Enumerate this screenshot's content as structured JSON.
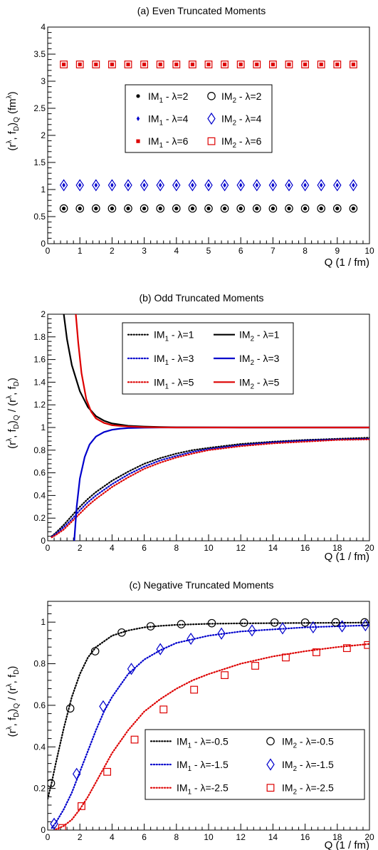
{
  "chart_data": [
    {
      "type": "scatter",
      "title": "(a)  Even Truncated Moments",
      "ylabel": "(r^λ, f_D)_Q   (fm^λ)",
      "xlabel": "Q   (1 / fm)",
      "xlim": [
        0,
        10
      ],
      "ylim": [
        0,
        4
      ],
      "xticks": [
        0,
        1,
        2,
        3,
        4,
        5,
        6,
        7,
        8,
        9,
        10
      ],
      "yticks": [
        0,
        0.5,
        1,
        1.5,
        2,
        2.5,
        3,
        3.5,
        4
      ],
      "grid": false,
      "legend_position": "center",
      "x": [
        0.5,
        1.0,
        1.5,
        2.0,
        2.5,
        3.0,
        3.5,
        4.0,
        4.5,
        5.0,
        5.5,
        6.0,
        6.5,
        7.0,
        7.5,
        8.0,
        8.5,
        9.0,
        9.5
      ],
      "series": [
        {
          "name": "IM1 - λ=2",
          "label_base": "IM",
          "label_sub": "1",
          "label_rest": " - λ=2",
          "marker": "dot",
          "color": "#000000",
          "value": 0.65
        },
        {
          "name": "IM2 - λ=2",
          "label_base": "IM",
          "label_sub": "2",
          "label_rest": " - λ=2",
          "marker": "open-circle",
          "color": "#000000",
          "value": 0.65
        },
        {
          "name": "IM1 - λ=4",
          "label_base": "IM",
          "label_sub": "1",
          "label_rest": " - λ=4",
          "marker": "small-diamond",
          "color": "#0000cc",
          "value": 1.08
        },
        {
          "name": "IM2 - λ=4",
          "label_base": "IM",
          "label_sub": "2",
          "label_rest": " - λ=4",
          "marker": "open-diamond",
          "color": "#0000cc",
          "value": 1.08
        },
        {
          "name": "IM1 - λ=6",
          "label_base": "IM",
          "label_sub": "1",
          "label_rest": " - λ=6",
          "marker": "filled-square",
          "color": "#dd0000",
          "value": 3.31
        },
        {
          "name": "IM2 - λ=6",
          "label_base": "IM",
          "label_sub": "2",
          "label_rest": " - λ=6",
          "marker": "open-square",
          "color": "#dd0000",
          "value": 3.31
        }
      ]
    },
    {
      "type": "line",
      "title": "(b)  Odd Truncated Moments",
      "ylabel": "(r^λ, f_D)_Q  /  (r^λ, f_D)",
      "xlabel": "Q   (1 / fm)",
      "xlim": [
        0,
        20
      ],
      "ylim": [
        0,
        2
      ],
      "xticks": [
        0,
        2,
        4,
        6,
        8,
        10,
        12,
        14,
        16,
        18,
        20
      ],
      "yticks": [
        0,
        0.2,
        0.4,
        0.6,
        0.8,
        1,
        1.2,
        1.4,
        1.6,
        1.8,
        2
      ],
      "grid": false,
      "legend_position": "top-right",
      "series": [
        {
          "name": "IM1 - λ=1",
          "label_base": "IM",
          "label_sub": "1",
          "label_rest": " - λ=1",
          "style": "dotted",
          "color": "#000000",
          "x": [
            0.25,
            0.5,
            1,
            1.5,
            2,
            2.5,
            3,
            4,
            5,
            6,
            7,
            8,
            9,
            10,
            12,
            14,
            16,
            18,
            20
          ],
          "y": [
            0.04,
            0.07,
            0.14,
            0.22,
            0.3,
            0.37,
            0.43,
            0.53,
            0.61,
            0.68,
            0.73,
            0.77,
            0.8,
            0.82,
            0.855,
            0.875,
            0.89,
            0.9,
            0.91
          ]
        },
        {
          "name": "IM1 - λ=3",
          "label_base": "IM",
          "label_sub": "1",
          "label_rest": " - λ=3",
          "style": "dotted",
          "color": "#0000cc",
          "x": [
            0.25,
            0.5,
            1,
            1.5,
            2,
            2.5,
            3,
            4,
            5,
            6,
            7,
            8,
            9,
            10,
            12,
            14,
            16,
            18,
            20
          ],
          "y": [
            0.035,
            0.06,
            0.12,
            0.19,
            0.27,
            0.34,
            0.4,
            0.5,
            0.585,
            0.655,
            0.71,
            0.75,
            0.785,
            0.81,
            0.845,
            0.87,
            0.885,
            0.895,
            0.9
          ]
        },
        {
          "name": "IM1 - λ=5",
          "label_base": "IM",
          "label_sub": "1",
          "label_rest": " - λ=5",
          "style": "dotted",
          "color": "#dd0000",
          "x": [
            0.25,
            0.5,
            1,
            1.5,
            2,
            2.5,
            3,
            4,
            5,
            6,
            7,
            8,
            9,
            10,
            12,
            14,
            16,
            18,
            20
          ],
          "y": [
            0.03,
            0.05,
            0.1,
            0.17,
            0.24,
            0.31,
            0.37,
            0.475,
            0.56,
            0.635,
            0.69,
            0.735,
            0.77,
            0.8,
            0.835,
            0.86,
            0.875,
            0.89,
            0.895
          ]
        },
        {
          "name": "IM2 - λ=1",
          "label_base": "IM",
          "label_sub": "2",
          "label_rest": " - λ=1",
          "style": "solid",
          "color": "#000000",
          "x": [
            1.0,
            1.2,
            1.5,
            2,
            2.5,
            3,
            3.5,
            4,
            5,
            6,
            7,
            8,
            10,
            12,
            14,
            16,
            18,
            20
          ],
          "y": [
            2.0,
            1.78,
            1.55,
            1.32,
            1.18,
            1.1,
            1.06,
            1.035,
            1.015,
            1.008,
            1.004,
            1.002,
            1.001,
            1.0,
            1.0,
            1.0,
            1.0,
            1.0
          ]
        },
        {
          "name": "IM2 - λ=3",
          "label_base": "IM",
          "label_sub": "2",
          "label_rest": " - λ=3",
          "style": "solid",
          "color": "#0000cc",
          "x": [
            1.65,
            1.8,
            2,
            2.3,
            2.6,
            3,
            3.5,
            4,
            4.5,
            5,
            6,
            7,
            8,
            10,
            12,
            14,
            16,
            18,
            20
          ],
          "y": [
            0.0,
            0.3,
            0.55,
            0.74,
            0.85,
            0.92,
            0.96,
            0.98,
            0.99,
            0.995,
            0.998,
            1.0,
            1.0,
            1.0,
            1.0,
            1.0,
            1.0,
            1.0,
            1.0
          ]
        },
        {
          "name": "IM2 - λ=5",
          "label_base": "IM",
          "label_sub": "2",
          "label_rest": " - λ=5",
          "style": "solid",
          "color": "#dd0000",
          "x": [
            1.75,
            1.9,
            2.1,
            2.4,
            2.7,
            3,
            3.5,
            4,
            5,
            6,
            7,
            8,
            10,
            12,
            14,
            16,
            18,
            20
          ],
          "y": [
            2.0,
            1.75,
            1.48,
            1.25,
            1.14,
            1.08,
            1.04,
            1.02,
            1.008,
            1.003,
            1.001,
            1.0,
            1.0,
            1.0,
            1.0,
            1.0,
            1.0,
            1.0
          ]
        }
      ]
    },
    {
      "type": "line",
      "title": "(c)  Negative Truncated Moments",
      "ylabel": "(r^λ, f_D)_Q  /  (r^λ, f_D)",
      "xlabel": "Q   (1 / fm)",
      "xlim": [
        0,
        20
      ],
      "ylim": [
        0,
        1.1
      ],
      "xticks": [
        0,
        2,
        4,
        6,
        8,
        10,
        12,
        14,
        16,
        18,
        20
      ],
      "yticks": [
        0,
        0.2,
        0.4,
        0.6,
        0.8,
        1
      ],
      "grid": false,
      "legend_position": "bottom-right",
      "series": [
        {
          "name": "IM1 - λ=-0.5",
          "label_base": "IM",
          "label_sub": "1",
          "label_rest": " - λ=-0.5",
          "style": "dotted",
          "color": "#000000",
          "x": [
            0,
            0.25,
            0.5,
            1,
            1.5,
            2,
            2.5,
            3,
            4,
            5,
            6,
            7,
            8,
            10,
            12,
            14,
            16,
            18,
            20
          ],
          "y": [
            0.15,
            0.23,
            0.32,
            0.49,
            0.64,
            0.75,
            0.83,
            0.88,
            0.935,
            0.96,
            0.975,
            0.982,
            0.987,
            0.992,
            0.994,
            0.995,
            0.996,
            0.997,
            0.998
          ]
        },
        {
          "name": "IM1 - λ=-1.5",
          "label_base": "IM",
          "label_sub": "1",
          "label_rest": " - λ=-1.5",
          "style": "dotted",
          "color": "#0000cc",
          "x": [
            0.25,
            0.5,
            1,
            1.5,
            2,
            2.5,
            3,
            3.5,
            4,
            5,
            6,
            7,
            8,
            10,
            12,
            14,
            16,
            18,
            20
          ],
          "y": [
            0.01,
            0.035,
            0.1,
            0.18,
            0.28,
            0.38,
            0.48,
            0.57,
            0.64,
            0.75,
            0.82,
            0.865,
            0.9,
            0.935,
            0.955,
            0.965,
            0.975,
            0.98,
            0.985
          ]
        },
        {
          "name": "IM1 - λ=-2.5",
          "label_base": "IM",
          "label_sub": "1",
          "label_rest": " - λ=-2.5",
          "style": "dotted",
          "color": "#dd0000",
          "x": [
            0.5,
            1,
            1.5,
            2,
            2.5,
            3,
            3.5,
            4,
            5,
            6,
            7,
            8,
            9,
            10,
            12,
            14,
            16,
            18,
            20
          ],
          "y": [
            0.003,
            0.02,
            0.05,
            0.1,
            0.16,
            0.23,
            0.3,
            0.37,
            0.48,
            0.57,
            0.63,
            0.68,
            0.72,
            0.75,
            0.8,
            0.835,
            0.86,
            0.88,
            0.895
          ]
        },
        {
          "name": "IM2 - λ=-0.5",
          "label_base": "IM",
          "label_sub": "2",
          "label_rest": " - λ=-0.5",
          "marker": "open-circle",
          "color": "#000000",
          "x": [
            0.2,
            1.4,
            2.95,
            4.6,
            6.4,
            8.3,
            10.2,
            12.2,
            14.1,
            16.0,
            17.9,
            19.7
          ],
          "y": [
            0.225,
            0.585,
            0.86,
            0.95,
            0.98,
            0.99,
            0.995,
            0.997,
            0.998,
            0.998,
            0.999,
            0.999
          ]
        },
        {
          "name": "IM2 - λ=-1.5",
          "label_base": "IM",
          "label_sub": "2",
          "label_rest": " - λ=-1.5",
          "marker": "open-diamond",
          "color": "#0000cc",
          "x": [
            0.4,
            1.8,
            3.45,
            5.2,
            7.0,
            8.9,
            10.8,
            12.7,
            14.6,
            16.5,
            18.3,
            19.75
          ],
          "y": [
            0.03,
            0.27,
            0.595,
            0.775,
            0.87,
            0.92,
            0.945,
            0.96,
            0.97,
            0.975,
            0.98,
            0.985
          ]
        },
        {
          "name": "IM2 - λ=-2.5",
          "label_base": "IM",
          "label_sub": "2",
          "label_rest": " - λ=-2.5",
          "marker": "open-square",
          "color": "#dd0000",
          "x": [
            0.9,
            2.1,
            3.7,
            5.4,
            7.2,
            9.1,
            11.0,
            12.9,
            14.8,
            16.7,
            18.6,
            19.9
          ],
          "y": [
            0.01,
            0.115,
            0.28,
            0.435,
            0.58,
            0.675,
            0.745,
            0.79,
            0.83,
            0.855,
            0.875,
            0.89
          ]
        }
      ]
    }
  ]
}
